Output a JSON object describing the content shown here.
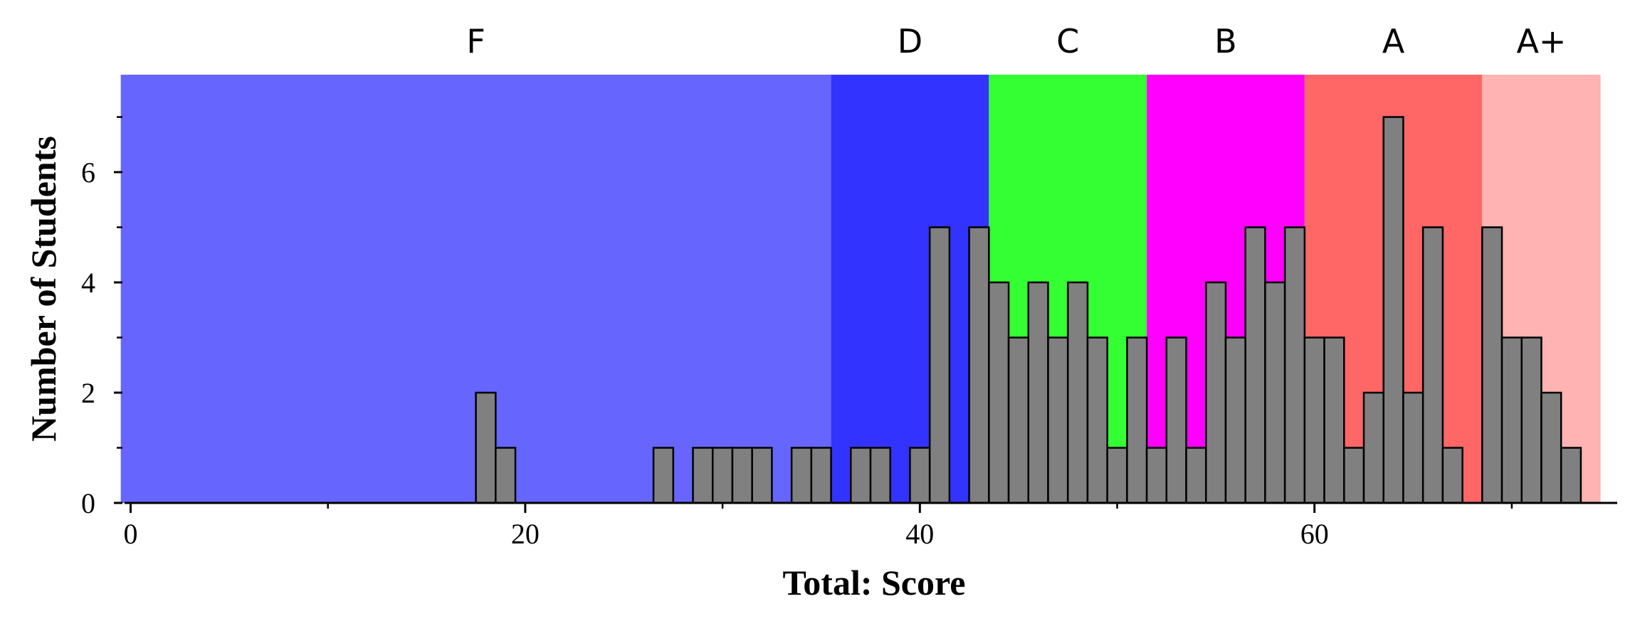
{
  "chart_data": {
    "type": "bar",
    "xlabel": "Total: Score",
    "ylabel": "Number of Students",
    "xlim": [
      -0.5,
      75.0
    ],
    "ylim": [
      0,
      7.7
    ],
    "x_ticks": [
      0,
      20,
      40,
      60
    ],
    "y_ticks": [
      0,
      2,
      4,
      6
    ],
    "grid": false,
    "bar_color": "#808080",
    "grade_bands": [
      {
        "label": "F",
        "start": -0.5,
        "end": 35.5,
        "color": "#6666ff"
      },
      {
        "label": "D",
        "start": 35.5,
        "end": 43.5,
        "color": "#3333ff"
      },
      {
        "label": "C",
        "start": 43.5,
        "end": 51.5,
        "color": "#33ff33"
      },
      {
        "label": "B",
        "start": 51.5,
        "end": 59.5,
        "color": "#ff00ff"
      },
      {
        "label": "A",
        "start": 59.5,
        "end": 68.5,
        "color": "#ff6666"
      },
      {
        "label": "A+",
        "start": 68.5,
        "end": 74.5,
        "color": "#ffb3b3"
      }
    ],
    "bins": [
      {
        "start": 17.5,
        "count": 2
      },
      {
        "start": 18.5,
        "count": 1
      },
      {
        "start": 26.5,
        "count": 1
      },
      {
        "start": 28.5,
        "count": 1
      },
      {
        "start": 29.5,
        "count": 1
      },
      {
        "start": 30.5,
        "count": 1
      },
      {
        "start": 31.5,
        "count": 1
      },
      {
        "start": 33.5,
        "count": 1
      },
      {
        "start": 34.5,
        "count": 1
      },
      {
        "start": 36.5,
        "count": 1
      },
      {
        "start": 37.5,
        "count": 1
      },
      {
        "start": 39.5,
        "count": 1
      },
      {
        "start": 40.5,
        "count": 5
      },
      {
        "start": 42.5,
        "count": 5
      },
      {
        "start": 43.5,
        "count": 4
      },
      {
        "start": 44.5,
        "count": 3
      },
      {
        "start": 45.5,
        "count": 4
      },
      {
        "start": 46.5,
        "count": 3
      },
      {
        "start": 47.5,
        "count": 4
      },
      {
        "start": 48.5,
        "count": 3
      },
      {
        "start": 49.5,
        "count": 1
      },
      {
        "start": 50.5,
        "count": 3
      },
      {
        "start": 51.5,
        "count": 1
      },
      {
        "start": 52.5,
        "count": 3
      },
      {
        "start": 53.5,
        "count": 1
      },
      {
        "start": 54.5,
        "count": 4
      },
      {
        "start": 55.5,
        "count": 3
      },
      {
        "start": 56.5,
        "count": 5
      },
      {
        "start": 57.5,
        "count": 4
      },
      {
        "start": 58.5,
        "count": 5
      },
      {
        "start": 59.5,
        "count": 3
      },
      {
        "start": 60.5,
        "count": 3
      },
      {
        "start": 61.5,
        "count": 1
      },
      {
        "start": 62.5,
        "count": 2
      },
      {
        "start": 63.5,
        "count": 7
      },
      {
        "start": 64.5,
        "count": 2
      },
      {
        "start": 65.5,
        "count": 5
      },
      {
        "start": 66.5,
        "count": 1
      },
      {
        "start": 68.5,
        "count": 5
      },
      {
        "start": 69.5,
        "count": 3
      },
      {
        "start": 70.5,
        "count": 3
      },
      {
        "start": 71.5,
        "count": 2
      },
      {
        "start": 72.5,
        "count": 1
      }
    ]
  }
}
